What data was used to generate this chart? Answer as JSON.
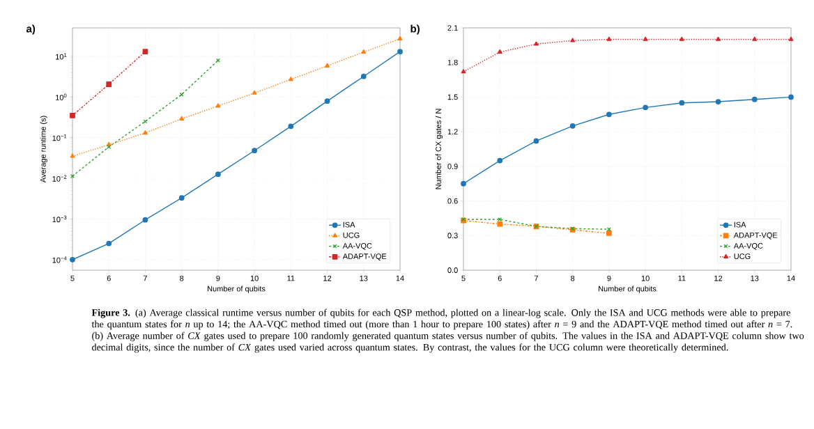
{
  "chart_data": [
    {
      "type": "line",
      "title": "a)",
      "xlabel": "Number of qubits",
      "ylabel": "Average runtime (s)",
      "log": "y",
      "grid": true,
      "legend": "bottom right",
      "xlim": [
        5,
        14
      ],
      "xticks": [
        5,
        6,
        7,
        8,
        9,
        10,
        11,
        12,
        13,
        14
      ],
      "ylim": [
        5.5e-05,
        50
      ],
      "yticks": [
        {
          "value": 0.0001,
          "label": "10$^{−4}$"
        },
        {
          "value": 0.001,
          "label": "10$^{−3}$"
        },
        {
          "value": 0.01,
          "label": "10$^{−2}$"
        },
        {
          "value": 0.1,
          "label": "10$^{−1}$"
        },
        {
          "value": 1,
          "label": "10$^{0}$"
        },
        {
          "value": 10,
          "label": "10$^{1}$"
        }
      ],
      "x": [
        5,
        6,
        7,
        8,
        9,
        10,
        11,
        12,
        13,
        14
      ],
      "series": [
        {
          "name": "ISA",
          "color": "#1f77b4",
          "marker": "circle",
          "line_style": "solid",
          "values": [
            0.0001,
            0.00025,
            0.00095,
            0.0033,
            0.0126,
            0.048,
            0.19,
            0.79,
            3.2,
            13
          ]
        },
        {
          "name": "UCG",
          "color": "#ff7f0e",
          "marker": "triangle",
          "line_style": "dotted",
          "values": [
            0.035,
            0.067,
            0.13,
            0.29,
            0.6,
            1.25,
            2.7,
            5.8,
            12.7,
            27
          ]
        },
        {
          "name": "AA-VQC",
          "color": "#2ca02c",
          "marker": "cross",
          "line_style": "dashed",
          "values": [
            0.0113,
            0.059,
            0.25,
            1.15,
            7.9,
            null,
            null,
            null,
            null,
            null
          ]
        },
        {
          "name": "ADAPT-VQE",
          "color": "#d62728",
          "marker": "square",
          "line_style": "dashdot",
          "values": [
            0.35,
            2.05,
            13,
            null,
            null,
            null,
            null,
            null,
            null,
            null
          ]
        }
      ],
      "annotations": [
        "**Figure 3.** (a) Average classical runtime versus number of qubits for each QSP method, plotted on a linear-log scale. Only the ISA and UCG methods were able to prepare the quantum states for *n* up to 14; the AA-VQC method timed out (more than 1 hour to prepare 100 states) after *n* = 9 and the ADAPT-VQE method timed out after *n* = 7. (b) Average number of *CX* gates used to prepare 100 randomly generated quantum states versus number of qubits. The values in the ISA and ADAPT-VQE column show two decimal digits, since the number of *CX* gates used varied across quantum states. By contrast, the values for the UCG column were theoretically determined."
      ]
    },
    {
      "type": "line",
      "title": "b)",
      "xlabel": "Number of qubits",
      "ylabel": "Number of CX gates / N",
      "grid": true,
      "legend": "bottom right",
      "xlim": [
        5,
        14
      ],
      "xticks": [
        5,
        6,
        7,
        8,
        9,
        10,
        11,
        12,
        13,
        14
      ],
      "ylim": [
        0,
        2.1
      ],
      "yticks": [
        {
          "value": 0,
          "label": "0.0"
        },
        0.3,
        0.6,
        0.9,
        1.2,
        1.5,
        1.8,
        2.1
      ],
      "x": [
        5,
        6,
        7,
        8,
        9,
        10,
        11,
        12,
        13,
        14
      ],
      "series": [
        {
          "name": "ISA",
          "color": "#1f77b4",
          "marker": "circle",
          "line_style": "solid",
          "values": [
            0.75,
            0.95,
            1.12,
            1.25,
            1.35,
            1.41,
            1.45,
            1.46,
            1.48,
            1.5
          ]
        },
        {
          "name": "ADAPT-VQE",
          "color": "#ff7f0e",
          "marker": "square",
          "line_style": "dashdot",
          "values": [
            0.43,
            0.4,
            0.38,
            0.35,
            0.32,
            null,
            null,
            null,
            null,
            null
          ]
        },
        {
          "name": "AA-VQC",
          "color": "#2ca02c",
          "marker": "cross",
          "line_style": "dashed",
          "values": [
            0.44,
            0.44,
            0.38,
            0.36,
            0.355,
            null,
            null,
            null,
            null,
            null
          ]
        },
        {
          "name": "UCG",
          "color": "#d62728",
          "marker": "triangle",
          "line_style": "dotted",
          "values": [
            1.72,
            1.89,
            1.96,
            1.99,
            2.0,
            2.0,
            2.0,
            2.0,
            2.0,
            2.0
          ]
        }
      ]
    }
  ]
}
